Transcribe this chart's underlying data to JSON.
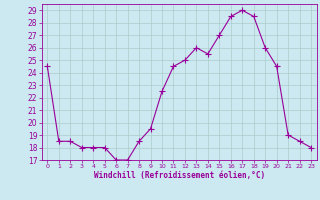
{
  "x": [
    0,
    1,
    2,
    3,
    4,
    5,
    6,
    7,
    8,
    9,
    10,
    11,
    12,
    13,
    14,
    15,
    16,
    17,
    18,
    19,
    20,
    21,
    22,
    23
  ],
  "y": [
    24.5,
    18.5,
    18.5,
    18.0,
    18.0,
    18.0,
    17.0,
    17.0,
    18.5,
    19.5,
    22.5,
    24.5,
    25.0,
    26.0,
    25.5,
    27.0,
    28.5,
    29.0,
    28.5,
    26.0,
    24.5,
    19.0,
    18.5,
    18.0
  ],
  "line_color": "#990099",
  "marker": "+",
  "marker_size": 4,
  "bg_color": "#cce8f0",
  "grid_color": "#aacccc",
  "xlabel": "Windchill (Refroidissement éolien,°C)",
  "xlabel_color": "#990099",
  "xlim": [
    -0.5,
    23.5
  ],
  "ylim": [
    17,
    29.5
  ],
  "yticks": [
    17,
    18,
    19,
    20,
    21,
    22,
    23,
    24,
    25,
    26,
    27,
    28,
    29
  ],
  "xtick_labels": [
    "0",
    "1",
    "2",
    "3",
    "4",
    "5",
    "6",
    "7",
    "8",
    "9",
    "10",
    "11",
    "12",
    "13",
    "14",
    "15",
    "16",
    "17",
    "18",
    "19",
    "20",
    "21",
    "22",
    "23"
  ],
  "tick_label_color": "#990099",
  "ytick_fontsize": 5.5,
  "xtick_fontsize": 4.5,
  "xlabel_fontsize": 5.5
}
